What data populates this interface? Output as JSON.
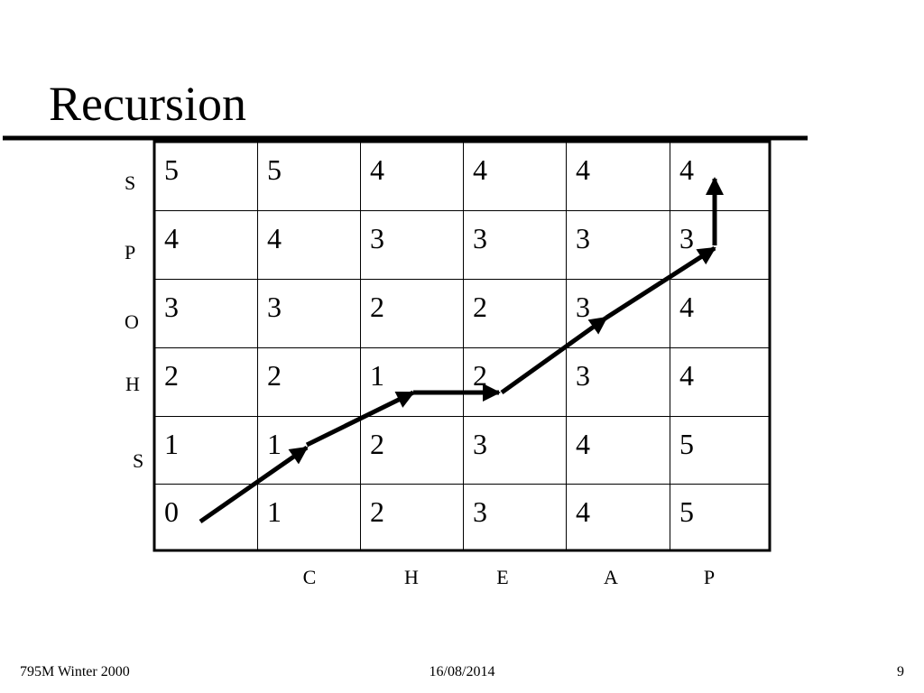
{
  "header": {
    "title": "Recursion"
  },
  "table": {
    "rows": [
      [
        5,
        5,
        4,
        4,
        4,
        4
      ],
      [
        4,
        4,
        3,
        3,
        3,
        3
      ],
      [
        3,
        3,
        2,
        2,
        3,
        4
      ],
      [
        2,
        2,
        1,
        2,
        3,
        4
      ],
      [
        1,
        1,
        2,
        3,
        4,
        5
      ],
      [
        0,
        1,
        2,
        3,
        4,
        5
      ]
    ],
    "row_labels": [
      "S",
      "P",
      "O",
      "H",
      "S"
    ],
    "column_labels": [
      "C",
      "H",
      "E",
      "A",
      "P"
    ]
  },
  "footer": {
    "left": "795M Winter 2000",
    "center": "16/08/2014",
    "right": "9"
  }
}
